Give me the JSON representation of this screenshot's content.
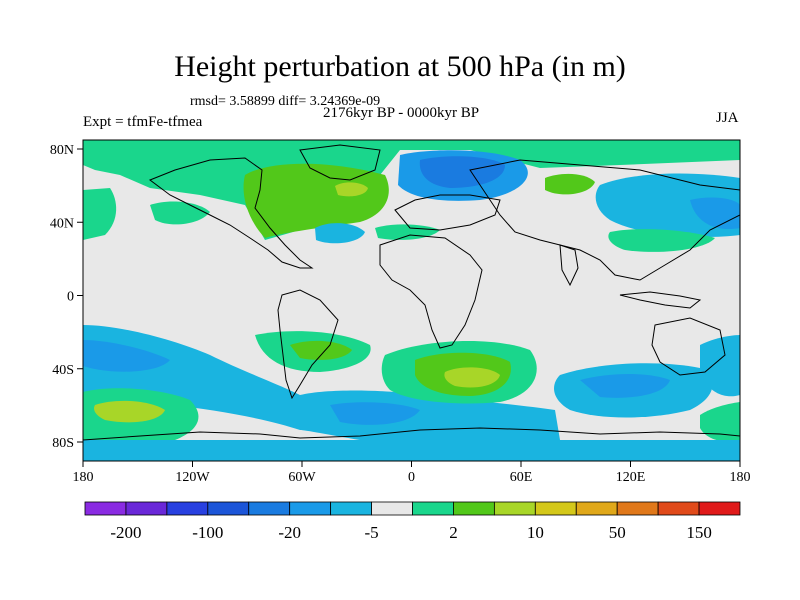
{
  "title": "Height perturbation at 500 hPa (in m)",
  "stats": "rmsd= 3.58899 diff= 3.24369e-09",
  "period": "2176kyr BP - 0000kyr BP",
  "experiment": "Expt = tfmFe-tfmea",
  "season": "JJA",
  "lon_ticks": [
    "180",
    "120W",
    "60W",
    "0",
    "60E",
    "120E",
    "180"
  ],
  "lat_ticks": [
    "80N",
    "40N",
    "0",
    "40S",
    "80S"
  ],
  "colorbar": {
    "colors": [
      "#8a2be2",
      "#6a28d8",
      "#2840e0",
      "#1c55d8",
      "#1a7be0",
      "#1a9ae8",
      "#1ab4e0",
      "#e8e8e8",
      "#1ad68c",
      "#52c81a",
      "#a8d628",
      "#d4c81a",
      "#e0a81a",
      "#e0781a",
      "#e04a1a",
      "#e01a1a"
    ],
    "labels": [
      "-200",
      "-100",
      "-20",
      "-5",
      "2",
      "10",
      "50",
      "150"
    ]
  },
  "colors": {
    "neutral": "#e8e8e8",
    "green_dark": "#1ad68c",
    "green": "#52c81a",
    "yellow_green": "#a8d628",
    "blue_light": "#1ab4e0",
    "blue": "#1a9ae8",
    "blue_dark": "#1a7be0",
    "coast": "#000000"
  }
}
